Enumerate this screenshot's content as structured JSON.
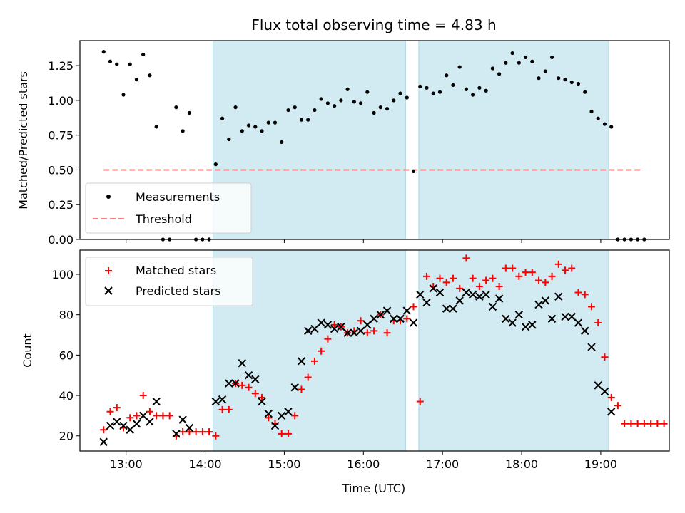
{
  "chart_data": [
    {
      "type": "scatter",
      "title": "Flux total observing time = 4.83 h",
      "ylabel": "Matched/Predicted stars",
      "xlabel": "",
      "xlim": [
        "12:25",
        "19:52"
      ],
      "ylim": [
        0,
        1.43
      ],
      "yticks": [
        0.0,
        0.25,
        0.5,
        0.75,
        1.0,
        1.25
      ],
      "ytick_labels": [
        "0.00",
        "0.25",
        "0.50",
        "0.75",
        "1.00",
        "1.25"
      ],
      "shaded_intervals": [
        [
          "14:06",
          "16:32"
        ],
        [
          "16:42",
          "19:06"
        ]
      ],
      "shade_color": "#add8e6",
      "legend_position": "bottom-left",
      "threshold": {
        "name": "Threshold",
        "value": 0.5,
        "x_start": "12:43",
        "x_end": "19:32",
        "color": "#ff7f7f"
      },
      "series": [
        {
          "name": "Measurements",
          "color": "#000000",
          "marker": "dot",
          "points": [
            [
              "12:43",
              1.35
            ],
            [
              "12:48",
              1.28
            ],
            [
              "12:53",
              1.26
            ],
            [
              "12:58",
              1.04
            ],
            [
              "13:03",
              1.26
            ],
            [
              "13:08",
              1.15
            ],
            [
              "13:13",
              1.33
            ],
            [
              "13:18",
              1.18
            ],
            [
              "13:23",
              0.81
            ],
            [
              "13:28",
              0.0
            ],
            [
              "13:33",
              0.0
            ],
            [
              "13:38",
              0.95
            ],
            [
              "13:43",
              0.78
            ],
            [
              "13:48",
              0.91
            ],
            [
              "13:53",
              0.0
            ],
            [
              "13:58",
              0.0
            ],
            [
              "14:03",
              0.0
            ],
            [
              "14:08",
              0.54
            ],
            [
              "14:13",
              0.87
            ],
            [
              "14:18",
              0.72
            ],
            [
              "14:23",
              0.95
            ],
            [
              "14:28",
              0.78
            ],
            [
              "14:33",
              0.82
            ],
            [
              "14:38",
              0.81
            ],
            [
              "14:43",
              0.78
            ],
            [
              "14:48",
              0.84
            ],
            [
              "14:53",
              0.84
            ],
            [
              "14:58",
              0.7
            ],
            [
              "15:03",
              0.93
            ],
            [
              "15:08",
              0.95
            ],
            [
              "15:13",
              0.86
            ],
            [
              "15:18",
              0.86
            ],
            [
              "15:23",
              0.93
            ],
            [
              "15:28",
              1.01
            ],
            [
              "15:33",
              0.98
            ],
            [
              "15:38",
              0.96
            ],
            [
              "15:43",
              1.0
            ],
            [
              "15:48",
              1.08
            ],
            [
              "15:53",
              0.99
            ],
            [
              "15:58",
              0.98
            ],
            [
              "16:03",
              1.06
            ],
            [
              "16:08",
              0.91
            ],
            [
              "16:13",
              0.95
            ],
            [
              "16:18",
              0.94
            ],
            [
              "16:23",
              1.0
            ],
            [
              "16:28",
              1.05
            ],
            [
              "16:33",
              1.02
            ],
            [
              "16:38",
              0.49
            ],
            [
              "16:43",
              1.1
            ],
            [
              "16:48",
              1.09
            ],
            [
              "16:53",
              1.05
            ],
            [
              "16:58",
              1.06
            ],
            [
              "17:03",
              1.18
            ],
            [
              "17:08",
              1.11
            ],
            [
              "17:13",
              1.24
            ],
            [
              "17:18",
              1.08
            ],
            [
              "17:23",
              1.04
            ],
            [
              "17:28",
              1.09
            ],
            [
              "17:33",
              1.07
            ],
            [
              "17:38",
              1.23
            ],
            [
              "17:43",
              1.19
            ],
            [
              "17:48",
              1.27
            ],
            [
              "17:53",
              1.34
            ],
            [
              "17:58",
              1.27
            ],
            [
              "18:03",
              1.31
            ],
            [
              "18:08",
              1.28
            ],
            [
              "18:13",
              1.16
            ],
            [
              "18:18",
              1.21
            ],
            [
              "18:23",
              1.31
            ],
            [
              "18:28",
              1.16
            ],
            [
              "18:33",
              1.15
            ],
            [
              "18:38",
              1.13
            ],
            [
              "18:43",
              1.12
            ],
            [
              "18:48",
              1.06
            ],
            [
              "18:53",
              0.92
            ],
            [
              "18:58",
              0.87
            ],
            [
              "19:03",
              0.83
            ],
            [
              "19:08",
              0.81
            ],
            [
              "19:13",
              0.0
            ],
            [
              "19:18",
              0.0
            ],
            [
              "19:23",
              0.0
            ],
            [
              "19:28",
              0.0
            ],
            [
              "19:33",
              0.0
            ]
          ]
        }
      ]
    },
    {
      "type": "scatter",
      "title": "",
      "xlabel": "Time (UTC)",
      "ylabel": "Count",
      "xlim": [
        "12:25",
        "19:52"
      ],
      "ylim": [
        12.5,
        112
      ],
      "yticks": [
        20,
        40,
        60,
        80,
        100
      ],
      "ytick_labels": [
        "20",
        "40",
        "60",
        "80",
        "100"
      ],
      "xticks": [
        "13:00",
        "14:00",
        "15:00",
        "16:00",
        "17:00",
        "18:00",
        "19:00"
      ],
      "xtick_labels": [
        "13:00",
        "14:00",
        "15:00",
        "16:00",
        "17:00",
        "18:00",
        "19:00"
      ],
      "shaded_intervals": [
        [
          "14:06",
          "16:32"
        ],
        [
          "16:42",
          "19:06"
        ]
      ],
      "shade_color": "#add8e6",
      "legend_position": "top-left",
      "series": [
        {
          "name": "Matched stars",
          "color": "#ff0000",
          "marker": "plus",
          "points": [
            [
              "12:43",
              23
            ],
            [
              "12:48",
              32
            ],
            [
              "12:53",
              34
            ],
            [
              "12:58",
              24
            ],
            [
              "13:03",
              29
            ],
            [
              "13:08",
              30
            ],
            [
              "13:13",
              40
            ],
            [
              "13:18",
              32
            ],
            [
              "13:23",
              30
            ],
            [
              "13:28",
              30
            ],
            [
              "13:33",
              30
            ],
            [
              "13:38",
              20
            ],
            [
              "13:43",
              22
            ],
            [
              "13:48",
              22
            ],
            [
              "13:53",
              22
            ],
            [
              "13:58",
              22
            ],
            [
              "14:03",
              22
            ],
            [
              "14:08",
              20
            ],
            [
              "14:13",
              33
            ],
            [
              "14:18",
              33
            ],
            [
              "14:23",
              46
            ],
            [
              "14:28",
              45
            ],
            [
              "14:33",
              44
            ],
            [
              "14:38",
              41
            ],
            [
              "14:43",
              39
            ],
            [
              "14:48",
              29
            ],
            [
              "14:53",
              26
            ],
            [
              "14:58",
              21
            ],
            [
              "15:03",
              21
            ],
            [
              "15:08",
              30
            ],
            [
              "15:13",
              43
            ],
            [
              "15:18",
              49
            ],
            [
              "15:23",
              57
            ],
            [
              "15:28",
              62
            ],
            [
              "15:33",
              68
            ],
            [
              "15:38",
              75
            ],
            [
              "15:43",
              74
            ],
            [
              "15:48",
              71
            ],
            [
              "15:53",
              72
            ],
            [
              "15:58",
              77
            ],
            [
              "16:03",
              71
            ],
            [
              "16:08",
              72
            ],
            [
              "16:13",
              80
            ],
            [
              "16:18",
              71
            ],
            [
              "16:23",
              77
            ],
            [
              "16:28",
              77
            ],
            [
              "16:33",
              78
            ],
            [
              "16:38",
              84
            ],
            [
              "16:43",
              37
            ],
            [
              "16:48",
              99
            ],
            [
              "16:53",
              94
            ],
            [
              "16:58",
              98
            ],
            [
              "17:03",
              96
            ],
            [
              "17:08",
              98
            ],
            [
              "17:13",
              93
            ],
            [
              "17:18",
              108
            ],
            [
              "17:23",
              98
            ],
            [
              "17:28",
              94
            ],
            [
              "17:33",
              97
            ],
            [
              "17:38",
              98
            ],
            [
              "17:43",
              94
            ],
            [
              "17:48",
              103
            ],
            [
              "17:53",
              103
            ],
            [
              "17:58",
              99
            ],
            [
              "18:03",
              101
            ],
            [
              "18:08",
              101
            ],
            [
              "18:13",
              97
            ],
            [
              "18:18",
              96
            ],
            [
              "18:23",
              99
            ],
            [
              "18:28",
              105
            ],
            [
              "18:33",
              102
            ],
            [
              "18:38",
              103
            ],
            [
              "18:43",
              91
            ],
            [
              "18:48",
              90
            ],
            [
              "18:53",
              84
            ],
            [
              "18:58",
              76
            ],
            [
              "19:03",
              59
            ],
            [
              "19:08",
              39
            ],
            [
              "19:13",
              35
            ],
            [
              "19:18",
              26
            ],
            [
              "19:23",
              26
            ],
            [
              "19:28",
              26
            ],
            [
              "19:33",
              26
            ],
            [
              "19:38",
              26
            ],
            [
              "19:43",
              26
            ],
            [
              "19:48",
              26
            ]
          ]
        },
        {
          "name": "Predicted stars",
          "color": "#000000",
          "marker": "x",
          "points": [
            [
              "12:43",
              17
            ],
            [
              "12:48",
              25
            ],
            [
              "12:53",
              27
            ],
            [
              "12:58",
              25
            ],
            [
              "13:03",
              23
            ],
            [
              "13:08",
              26
            ],
            [
              "13:13",
              30
            ],
            [
              "13:18",
              27
            ],
            [
              "13:23",
              37
            ],
            [
              "13:38",
              21
            ],
            [
              "13:43",
              28
            ],
            [
              "13:48",
              24
            ],
            [
              "14:08",
              37
            ],
            [
              "14:13",
              38
            ],
            [
              "14:18",
              46
            ],
            [
              "14:23",
              46
            ],
            [
              "14:28",
              56
            ],
            [
              "14:33",
              50
            ],
            [
              "14:38",
              48
            ],
            [
              "14:43",
              37
            ],
            [
              "14:48",
              31
            ],
            [
              "14:53",
              25
            ],
            [
              "14:58",
              30
            ],
            [
              "15:03",
              32
            ],
            [
              "15:08",
              44
            ],
            [
              "15:13",
              57
            ],
            [
              "15:18",
              72
            ],
            [
              "15:23",
              73
            ],
            [
              "15:28",
              76
            ],
            [
              "15:33",
              75
            ],
            [
              "15:38",
              73
            ],
            [
              "15:43",
              74
            ],
            [
              "15:48",
              71
            ],
            [
              "15:53",
              71
            ],
            [
              "15:58",
              72
            ],
            [
              "16:03",
              75
            ],
            [
              "16:08",
              78
            ],
            [
              "16:13",
              80
            ],
            [
              "16:18",
              82
            ],
            [
              "16:23",
              78
            ],
            [
              "16:28",
              78
            ],
            [
              "16:33",
              82
            ],
            [
              "16:38",
              76
            ],
            [
              "16:43",
              90
            ],
            [
              "16:48",
              86
            ],
            [
              "16:53",
              93
            ],
            [
              "16:58",
              91
            ],
            [
              "17:03",
              83
            ],
            [
              "17:08",
              83
            ],
            [
              "17:13",
              87
            ],
            [
              "17:18",
              91
            ],
            [
              "17:23",
              90
            ],
            [
              "17:28",
              89
            ],
            [
              "17:33",
              90
            ],
            [
              "17:38",
              84
            ],
            [
              "17:43",
              88
            ],
            [
              "17:48",
              78
            ],
            [
              "17:53",
              76
            ],
            [
              "17:58",
              80
            ],
            [
              "18:03",
              74
            ],
            [
              "18:08",
              75
            ],
            [
              "18:13",
              85
            ],
            [
              "18:18",
              87
            ],
            [
              "18:23",
              78
            ],
            [
              "18:28",
              89
            ],
            [
              "18:33",
              79
            ],
            [
              "18:38",
              79
            ],
            [
              "18:43",
              76
            ],
            [
              "18:48",
              72
            ],
            [
              "18:53",
              64
            ],
            [
              "18:58",
              45
            ],
            [
              "19:03",
              42
            ],
            [
              "19:08",
              32
            ]
          ]
        }
      ]
    }
  ]
}
